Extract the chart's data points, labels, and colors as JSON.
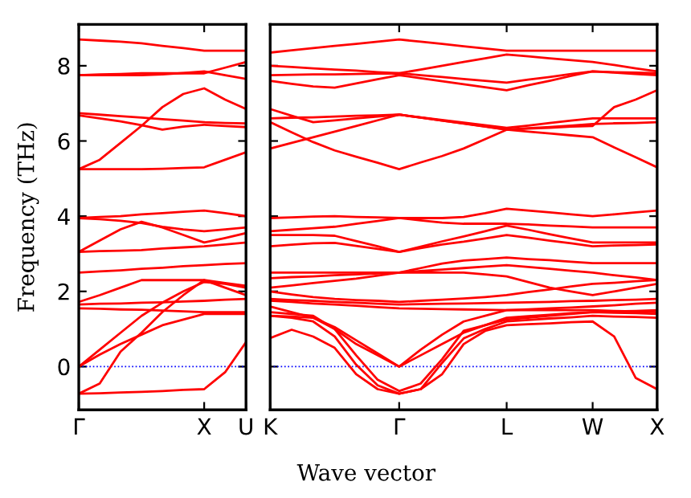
{
  "chart_data": [
    {
      "type": "line",
      "ylabel": "Frequency (THz)",
      "categories": [
        "Γ",
        null,
        null,
        null,
        null,
        null,
        "X",
        null,
        "U"
      ],
      "ylim": [
        -1.15,
        9.1
      ],
      "yticks": [
        0,
        2,
        4,
        6,
        8
      ],
      "grid": false,
      "legend": false,
      "marker": "none",
      "line_style": "solid",
      "ref_lines": [
        {
          "axis": "y",
          "value": 0,
          "label": null,
          "color": "#0000ff",
          "line_style": "dotted"
        }
      ],
      "series": [
        {
          "color": "#ff0000",
          "values": [
            -0.72,
            -0.71,
            -0.69,
            -0.67,
            -0.65,
            -0.62,
            -0.6,
            -0.15,
            0.65
          ]
        },
        {
          "color": "#ff0000",
          "values": [
            -0.72,
            -0.45,
            0.4,
            0.9,
            1.45,
            1.9,
            2.3,
            2.1,
            1.9
          ]
        },
        {
          "color": "#ff0000",
          "values": [
            0,
            0.45,
            0.9,
            1.35,
            1.7,
            2.0,
            2.25,
            2.2,
            2.1
          ]
        },
        {
          "color": "#ff0000",
          "values": [
            0,
            0.32,
            0.6,
            0.85,
            1.1,
            1.25,
            1.4,
            1.4,
            1.4
          ]
        },
        {
          "color": "#ff0000",
          "values": [
            1.55,
            1.54,
            1.52,
            1.51,
            1.49,
            1.47,
            1.45,
            1.45,
            1.45
          ]
        },
        {
          "color": "#ff0000",
          "values": [
            1.65,
            1.67,
            1.68,
            1.7,
            1.71,
            1.73,
            1.75,
            1.78,
            1.8
          ]
        },
        {
          "color": "#ff0000",
          "values": [
            1.72,
            1.9,
            2.1,
            2.3,
            2.3,
            2.3,
            2.3,
            2.22,
            2.15
          ]
        },
        {
          "color": "#ff0000",
          "values": [
            2.5,
            2.53,
            2.56,
            2.6,
            2.63,
            2.67,
            2.7,
            2.73,
            2.75
          ]
        },
        {
          "color": "#ff0000",
          "values": [
            3.05,
            3.07,
            3.08,
            3.1,
            3.14,
            3.17,
            3.2,
            3.25,
            3.3
          ]
        },
        {
          "color": "#ff0000",
          "values": [
            3.05,
            3.35,
            3.65,
            3.85,
            3.7,
            3.5,
            3.3,
            3.42,
            3.55
          ]
        },
        {
          "color": "#ff0000",
          "values": [
            3.95,
            3.92,
            3.88,
            3.82,
            3.72,
            3.65,
            3.6,
            3.65,
            3.7
          ]
        },
        {
          "color": "#ff0000",
          "values": [
            3.95,
            3.98,
            4.0,
            4.05,
            4.08,
            4.12,
            4.15,
            4.08,
            4.0
          ]
        },
        {
          "color": "#ff0000",
          "values": [
            5.25,
            5.25,
            5.25,
            5.25,
            5.26,
            5.28,
            5.3,
            5.5,
            5.7
          ]
        },
        {
          "color": "#ff0000",
          "values": [
            5.25,
            5.5,
            5.95,
            6.4,
            6.9,
            7.25,
            7.4,
            7.1,
            6.85
          ]
        },
        {
          "color": "#ff0000",
          "values": [
            6.68,
            6.6,
            6.52,
            6.42,
            6.3,
            6.38,
            6.43,
            6.4,
            6.37
          ]
        },
        {
          "color": "#ff0000",
          "values": [
            6.74,
            6.7,
            6.66,
            6.62,
            6.58,
            6.54,
            6.5,
            6.48,
            6.47
          ]
        },
        {
          "color": "#ff0000",
          "values": [
            7.75,
            7.75,
            7.75,
            7.75,
            7.77,
            7.81,
            7.85,
            7.75,
            7.65
          ]
        },
        {
          "color": "#ff0000",
          "values": [
            7.75,
            7.77,
            7.78,
            7.8,
            7.8,
            7.8,
            7.8,
            7.95,
            8.1
          ]
        },
        {
          "color": "#ff0000",
          "values": [
            8.7,
            8.67,
            8.64,
            8.6,
            8.53,
            8.47,
            8.4,
            8.4,
            8.4
          ]
        }
      ]
    },
    {
      "type": "line",
      "xlabel": "Wave vector",
      "categories": [
        "K",
        null,
        null,
        null,
        null,
        null,
        "Γ",
        null,
        null,
        null,
        null,
        "L",
        null,
        null,
        null,
        "W",
        null,
        null,
        "X"
      ],
      "ylim": [
        -1.15,
        9.1
      ],
      "tick_labels": "x",
      "yticks": [
        0,
        2,
        4,
        6,
        8
      ],
      "grid": false,
      "legend": false,
      "marker": "none",
      "line_style": "solid",
      "ref_lines": [
        {
          "axis": "y",
          "value": 0,
          "label": null,
          "color": "#0000ff",
          "line_style": "dotted"
        }
      ],
      "series": [
        {
          "color": "#ff0000",
          "values": [
            0.76,
            0.98,
            0.8,
            0.5,
            -0.2,
            -0.6,
            -0.72,
            -0.6,
            -0.2,
            0.6,
            0.95,
            1.1,
            1.13,
            1.15,
            1.18,
            1.2,
            0.8,
            -0.3,
            -0.6
          ]
        },
        {
          "color": "#ff0000",
          "values": [
            1.35,
            1.3,
            1.2,
            0.8,
            0.05,
            -0.5,
            -0.72,
            -0.6,
            0.1,
            0.75,
            1.0,
            1.2,
            1.24,
            1.28,
            1.31,
            1.35,
            1.33,
            1.32,
            1.3
          ]
        },
        {
          "color": "#ff0000",
          "values": [
            1.35,
            1.33,
            1.3,
            1.0,
            0.3,
            -0.35,
            -0.65,
            -0.45,
            0.2,
            0.95,
            1.1,
            1.25,
            1.3,
            1.35,
            1.4,
            1.45,
            1.43,
            1.42,
            1.4
          ]
        },
        {
          "color": "#ff0000",
          "values": [
            1.45,
            1.4,
            1.35,
            1.0,
            0.6,
            0.3,
            0.0,
            0.3,
            0.6,
            0.9,
            1.1,
            1.3,
            1.34,
            1.38,
            1.42,
            1.45,
            1.47,
            1.48,
            1.5
          ]
        },
        {
          "color": "#ff0000",
          "values": [
            1.6,
            1.45,
            1.3,
            1.05,
            0.7,
            0.35,
            0.0,
            0.45,
            0.85,
            1.2,
            1.35,
            1.5,
            1.52,
            1.55,
            1.57,
            1.6,
            1.63,
            1.67,
            1.7
          ]
        },
        {
          "color": "#ff0000",
          "values": [
            1.75,
            1.72,
            1.68,
            1.65,
            1.62,
            1.58,
            1.55,
            1.54,
            1.53,
            1.52,
            1.51,
            1.5,
            1.5,
            1.5,
            1.5,
            1.5,
            1.48,
            1.47,
            1.45
          ]
        },
        {
          "color": "#ff0000",
          "values": [
            1.8,
            1.77,
            1.75,
            1.72,
            1.7,
            1.67,
            1.65,
            1.66,
            1.67,
            1.68,
            1.69,
            1.7,
            1.71,
            1.72,
            1.74,
            1.75,
            1.77,
            1.78,
            1.8
          ]
        },
        {
          "color": "#ff0000",
          "values": [
            2.0,
            1.92,
            1.85,
            1.8,
            1.77,
            1.75,
            1.72,
            1.75,
            1.78,
            1.81,
            1.85,
            1.9,
            1.98,
            2.05,
            2.13,
            2.2,
            2.23,
            2.27,
            2.3
          ]
        },
        {
          "color": "#ff0000",
          "values": [
            2.1,
            2.16,
            2.22,
            2.28,
            2.34,
            2.42,
            2.5,
            2.5,
            2.5,
            2.5,
            2.45,
            2.4,
            2.25,
            2.1,
            2.0,
            1.9,
            2.0,
            2.1,
            2.2
          ]
        },
        {
          "color": "#ff0000",
          "values": [
            2.35,
            2.38,
            2.4,
            2.43,
            2.45,
            2.48,
            2.5,
            2.54,
            2.58,
            2.62,
            2.66,
            2.7,
            2.65,
            2.6,
            2.55,
            2.5,
            2.43,
            2.37,
            2.3
          ]
        },
        {
          "color": "#ff0000",
          "values": [
            2.5,
            2.5,
            2.5,
            2.5,
            2.5,
            2.5,
            2.5,
            2.62,
            2.74,
            2.82,
            2.86,
            2.9,
            2.86,
            2.83,
            2.79,
            2.75,
            2.75,
            2.75,
            2.75
          ]
        },
        {
          "color": "#ff0000",
          "values": [
            3.2,
            3.24,
            3.28,
            3.29,
            3.21,
            3.13,
            3.05,
            3.15,
            3.25,
            3.32,
            3.41,
            3.5,
            3.43,
            3.35,
            3.28,
            3.2,
            3.22,
            3.23,
            3.25
          ]
        },
        {
          "color": "#ff0000",
          "values": [
            3.5,
            3.5,
            3.5,
            3.48,
            3.34,
            3.2,
            3.05,
            3.19,
            3.33,
            3.46,
            3.6,
            3.75,
            3.64,
            3.52,
            3.41,
            3.3,
            3.3,
            3.3,
            3.3
          ]
        },
        {
          "color": "#ff0000",
          "values": [
            3.6,
            3.64,
            3.68,
            3.72,
            3.8,
            3.87,
            3.95,
            3.89,
            3.83,
            3.8,
            3.8,
            3.8,
            3.78,
            3.75,
            3.73,
            3.7,
            3.7,
            3.7,
            3.7
          ]
        },
        {
          "color": "#ff0000",
          "values": [
            3.95,
            3.97,
            3.99,
            4.0,
            3.98,
            3.97,
            3.95,
            3.95,
            3.95,
            3.98,
            4.08,
            4.2,
            4.15,
            4.1,
            4.05,
            4.0,
            4.05,
            4.1,
            4.15
          ]
        },
        {
          "color": "#ff0000",
          "values": [
            5.8,
            5.95,
            6.1,
            6.25,
            6.4,
            6.55,
            6.7,
            6.62,
            6.54,
            6.47,
            6.39,
            6.3,
            6.25,
            6.2,
            6.15,
            6.1,
            5.83,
            5.57,
            5.3
          ]
        },
        {
          "color": "#ff0000",
          "values": [
            6.5,
            6.23,
            5.97,
            5.75,
            5.58,
            5.42,
            5.25,
            5.43,
            5.6,
            5.8,
            6.05,
            6.3,
            6.34,
            6.37,
            6.41,
            6.45,
            6.47,
            6.48,
            6.5
          ]
        },
        {
          "color": "#ff0000",
          "values": [
            6.6,
            6.62,
            6.63,
            6.65,
            6.67,
            6.68,
            6.7,
            6.63,
            6.56,
            6.49,
            6.42,
            6.35,
            6.41,
            6.48,
            6.54,
            6.6,
            6.6,
            6.6,
            6.6
          ]
        },
        {
          "color": "#ff0000",
          "values": [
            6.85,
            6.67,
            6.5,
            6.55,
            6.6,
            6.65,
            6.7,
            6.62,
            6.54,
            6.46,
            6.38,
            6.3,
            6.33,
            6.35,
            6.38,
            6.4,
            6.9,
            7.1,
            7.35
          ]
        },
        {
          "color": "#ff0000",
          "values": [
            7.6,
            7.52,
            7.45,
            7.42,
            7.53,
            7.64,
            7.75,
            7.67,
            7.59,
            7.51,
            7.43,
            7.35,
            7.48,
            7.6,
            7.73,
            7.85,
            7.82,
            7.78,
            7.75
          ]
        },
        {
          "color": "#ff0000",
          "values": [
            7.75,
            7.76,
            7.77,
            7.77,
            7.78,
            7.79,
            7.8,
            7.75,
            7.7,
            7.65,
            7.6,
            7.55,
            7.63,
            7.7,
            7.78,
            7.85,
            7.83,
            7.82,
            7.8
          ]
        },
        {
          "color": "#ff0000",
          "values": [
            8.0,
            7.97,
            7.93,
            7.9,
            7.87,
            7.83,
            7.8,
            7.9,
            8.0,
            8.1,
            8.2,
            8.3,
            8.25,
            8.2,
            8.15,
            8.1,
            8.02,
            7.93,
            7.85
          ]
        },
        {
          "color": "#ff0000",
          "values": [
            8.35,
            8.41,
            8.47,
            8.53,
            8.58,
            8.64,
            8.7,
            8.64,
            8.58,
            8.52,
            8.46,
            8.4,
            8.4,
            8.4,
            8.4,
            8.4,
            8.4,
            8.4,
            8.4
          ]
        }
      ]
    }
  ]
}
